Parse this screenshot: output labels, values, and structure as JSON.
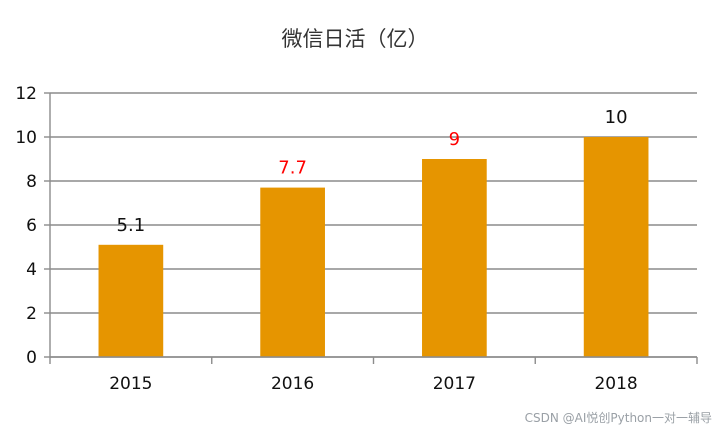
{
  "chart_data": {
    "type": "bar",
    "title": "微信日活（亿）",
    "categories": [
      "2015",
      "2016",
      "2017",
      "2018"
    ],
    "values": [
      5.1,
      7.7,
      9,
      10
    ],
    "data_labels": [
      "5.1",
      "7.7",
      "9",
      "10"
    ],
    "label_colors": [
      "#111111",
      "#ff0000",
      "#ff0000",
      "#111111"
    ],
    "bar_color": "#e69500",
    "ylim": [
      0,
      12
    ],
    "yticks": [
      0,
      2,
      4,
      6,
      8,
      10,
      12
    ],
    "grid": true,
    "legend": "none",
    "xlabel": "",
    "ylabel": ""
  },
  "watermark": "CSDN @AI悦创Python一对一辅导"
}
